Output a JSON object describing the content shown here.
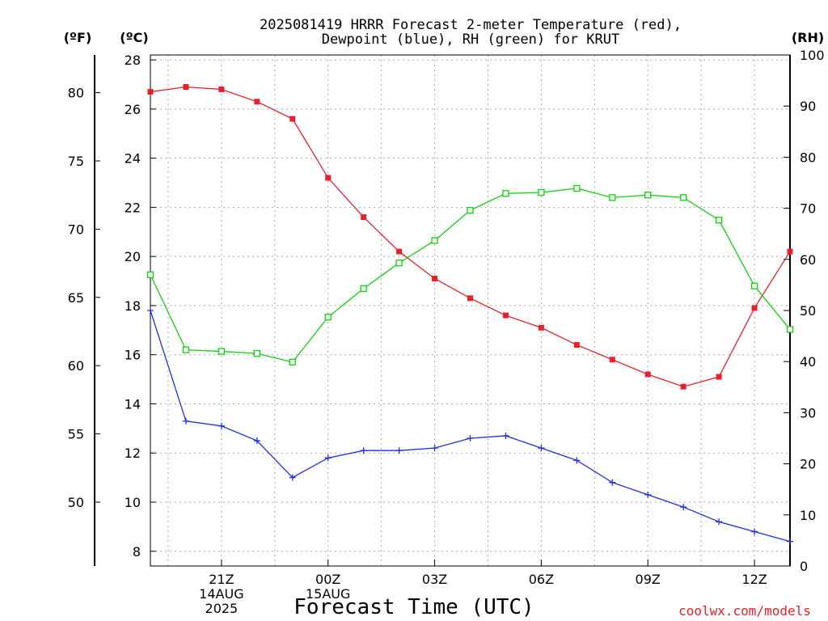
{
  "title": {
    "line1": "2025081419 HRRR Forecast 2-meter Temperature (red),",
    "line2": "Dewpoint (blue), RH (green) for KRUT"
  },
  "unit_labels": {
    "fahrenheit": "(ºF)",
    "celsius": "(ºC)",
    "rh": "(RH)"
  },
  "xlabel": "Forecast Time (UTC)",
  "watermark": "coolwx.com/models",
  "colors": {
    "temperature": "#e8202a",
    "dewpoint": "#1f2fe0",
    "rh": "#10d010",
    "grid": "#aaaaaa"
  },
  "chart_data": {
    "type": "line",
    "x": [
      19,
      20,
      21,
      22,
      23,
      24,
      25,
      26,
      27,
      28,
      29,
      30,
      31,
      32,
      33,
      34,
      35,
      36,
      37
    ],
    "xlim": [
      19,
      37
    ],
    "x_ticks": [
      {
        "x": 21,
        "lines": [
          "21Z",
          "14AUG",
          "2025"
        ]
      },
      {
        "x": 24,
        "lines": [
          "00Z",
          "15AUG"
        ]
      },
      {
        "x": 27,
        "lines": [
          "03Z"
        ]
      },
      {
        "x": 30,
        "lines": [
          "06Z"
        ]
      },
      {
        "x": 33,
        "lines": [
          "09Z"
        ]
      },
      {
        "x": 36,
        "lines": [
          "12Z"
        ]
      }
    ],
    "y_left_celsius": {
      "range": [
        7.4,
        28.2
      ],
      "ticks": [
        8,
        10,
        12,
        14,
        16,
        18,
        20,
        22,
        24,
        26,
        28
      ]
    },
    "y_left_fahrenheit": {
      "ticks": [
        50,
        55,
        60,
        65,
        70,
        75,
        80
      ]
    },
    "y_right_rh": {
      "range": [
        0,
        100
      ],
      "ticks": [
        0,
        10,
        20,
        30,
        40,
        50,
        60,
        70,
        80,
        90,
        100
      ]
    },
    "grid": true,
    "series": [
      {
        "key": "temperature",
        "axis": "celsius",
        "marker": "filled-square",
        "values": [
          26.7,
          26.9,
          26.8,
          26.3,
          25.6,
          23.2,
          21.6,
          20.2,
          19.1,
          18.3,
          17.6,
          17.1,
          16.4,
          15.8,
          15.2,
          14.7,
          15.1,
          17.9,
          20.2
        ]
      },
      {
        "key": "dewpoint",
        "axis": "celsius",
        "marker": "plus",
        "values": [
          17.8,
          13.3,
          13.1,
          12.5,
          11.0,
          11.8,
          12.1,
          12.1,
          12.2,
          12.6,
          12.7,
          12.2,
          11.7,
          10.8,
          10.3,
          9.8,
          9.2,
          8.8,
          8.4
        ]
      },
      {
        "key": "rh",
        "axis": "rh",
        "marker": "open-square",
        "values": [
          57,
          42.3,
          42,
          41.6,
          39.9,
          48.7,
          54.3,
          59.3,
          63.7,
          69.6,
          72.9,
          73.1,
          73.9,
          72.1,
          72.6,
          72.1,
          67.7,
          54.8,
          46.3
        ]
      }
    ]
  }
}
